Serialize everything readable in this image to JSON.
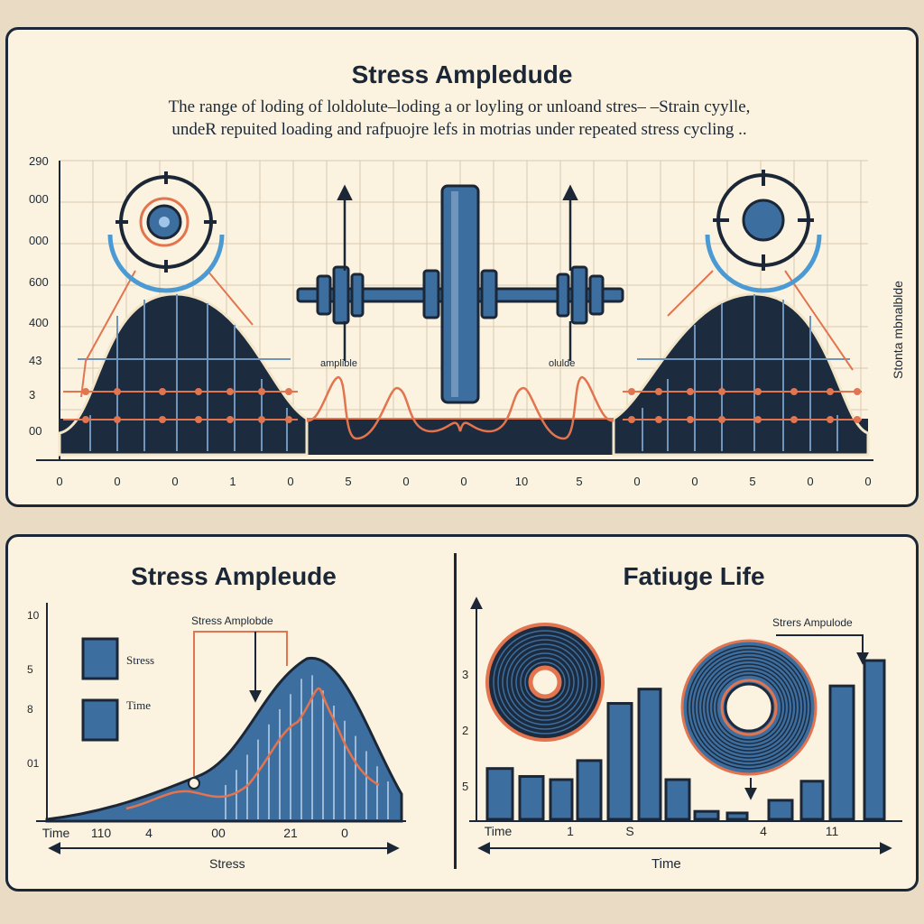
{
  "top": {
    "title": "Stress Ampledude",
    "caption_line1": "The range of loding of loldolute–loding a or loyling or unloand stres– –Strain cyylle,",
    "caption_line2": "undeR repuited loading and rafpuojre lefs in motrias under repeated stress cycling ..",
    "y_ticks": [
      "290",
      "000",
      "000",
      "600",
      "400",
      "43",
      "3",
      "00"
    ],
    "x_ticks": [
      "0",
      "0",
      "0",
      "1",
      "0",
      "5",
      "0",
      "0",
      "10",
      "5",
      "0",
      "0",
      "5",
      "0",
      "0"
    ],
    "right_axis_label": "Stonta mbnalblde",
    "label_left": "amplible",
    "label_right": "olulde"
  },
  "bottom_left": {
    "title": "Stress Ampleude",
    "annotation": "Stress Amplobde",
    "legend": [
      {
        "label": "Stress"
      },
      {
        "label": "Time"
      }
    ],
    "y_ticks": [
      "10",
      "5",
      "8",
      "01"
    ],
    "x_ticks": [
      "Time",
      "110",
      "4",
      "00",
      "21",
      "0"
    ],
    "xlabel": "Stress"
  },
  "bottom_right": {
    "title": "Fatiuge Life",
    "annotation": "Strers Ampulode",
    "y_ticks": [
      "3",
      "2",
      "5"
    ],
    "x_ticks": [
      "Time",
      "1",
      "S",
      "4",
      "11"
    ],
    "xlabel": "Time",
    "bar_levels": [
      0.32,
      0.27,
      0.25,
      0.37,
      0.73,
      0.82,
      0.25,
      0.05,
      0.04,
      0.12,
      0.24,
      0.84,
      1.0
    ]
  },
  "colors": {
    "navy": "#1b2736",
    "blue": "#3d6ea0",
    "orange": "#e2744f",
    "cream": "#fbf3df"
  }
}
